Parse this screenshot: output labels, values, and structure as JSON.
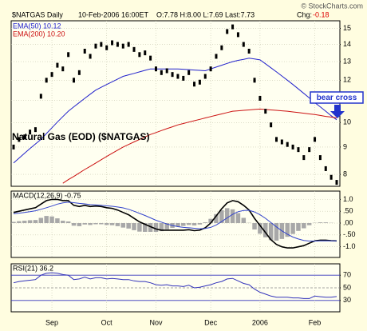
{
  "copyright": "© StockCharts.com",
  "chart_data": [
    {
      "type": "price",
      "title": "Natural Gas (EOD) ($NATGAS)",
      "subtitle": "$NATGAS Daily",
      "date": "10-Feb-2006 16:00ET",
      "ohlc": "O:7.78 H:8.00 L:7.69 Last:7.73",
      "change_label": "Chg:",
      "change": "-0.18",
      "annotation": "bear cross",
      "log_scale": true,
      "grid": true,
      "ylim": [
        7.6,
        15.5
      ],
      "yticks": [
        8,
        9,
        10,
        11,
        12,
        13,
        14,
        15
      ],
      "categories": [
        null,
        null,
        null,
        null,
        null,
        null,
        null,
        "Sep",
        null,
        null,
        null,
        null,
        null,
        null,
        null,
        null,
        null,
        "Oct",
        null,
        null,
        null,
        null,
        null,
        null,
        null,
        null,
        "Nov",
        null,
        null,
        null,
        null,
        null,
        null,
        null,
        null,
        null,
        "Dec",
        null,
        null,
        null,
        null,
        null,
        null,
        null,
        null,
        "2006",
        null,
        null,
        null,
        null,
        null,
        null,
        null,
        null,
        null,
        "Feb",
        null,
        null,
        null,
        null
      ],
      "color": "#000000",
      "values": [
        9.0,
        9.3,
        9.4,
        9.6,
        9.7,
        11.2,
        12.0,
        12.3,
        12.8,
        12.6,
        13.4,
        12.0,
        12.4,
        13.6,
        13.3,
        13.9,
        14.0,
        13.8,
        14.1,
        14.0,
        13.9,
        14.0,
        13.7,
        13.4,
        13.5,
        13.2,
        12.6,
        12.4,
        12.5,
        12.3,
        12.2,
        12.1,
        12.4,
        11.8,
        11.9,
        12.2,
        12.6,
        13.3,
        13.8,
        14.8,
        15.1,
        14.6,
        14.0,
        13.6,
        12.0,
        11.1,
        10.5,
        9.9,
        9.3,
        9.2,
        9.1,
        9.0,
        8.9,
        8.6,
        8.9,
        9.3,
        8.6,
        8.2,
        7.9,
        7.73
      ],
      "series": [
        {
          "name": "EMA(50) 10.12",
          "color": "#2222cc",
          "values": [
            8.4,
            8.58,
            8.76,
            8.94,
            9.12,
            9.3,
            9.54,
            9.78,
            10.02,
            10.26,
            10.5,
            10.7,
            10.9,
            11.1,
            11.3,
            11.5,
            11.64,
            11.78,
            11.92,
            12.06,
            12.2,
            12.28,
            12.36,
            12.44,
            12.52,
            12.6,
            12.6,
            12.6,
            12.6,
            12.6,
            12.6,
            12.58,
            12.56,
            12.54,
            12.52,
            12.5,
            12.6,
            12.7,
            12.8,
            12.9,
            13.0,
            13.07,
            13.13,
            13.2,
            13.15,
            13.1,
            12.88,
            12.66,
            12.44,
            12.22,
            12.0,
            11.78,
            11.56,
            11.34,
            11.12,
            10.9,
            10.7,
            10.5,
            10.3,
            10.12
          ]
        },
        {
          "name": "EMA(200) 10.20",
          "color": "#cc1111",
          "values": [
            null,
            null,
            null,
            null,
            null,
            null,
            null,
            null,
            null,
            7.7,
            7.82,
            7.93,
            8.05,
            8.17,
            8.28,
            8.4,
            8.52,
            8.64,
            8.76,
            8.88,
            9.0,
            9.1,
            9.2,
            9.3,
            9.4,
            9.5,
            9.58,
            9.66,
            9.74,
            9.82,
            9.9,
            9.96,
            10.02,
            10.08,
            10.14,
            10.2,
            10.26,
            10.32,
            10.38,
            10.44,
            10.5,
            10.52,
            10.54,
            10.56,
            10.58,
            10.6,
            10.58,
            10.56,
            10.54,
            10.52,
            10.5,
            10.47,
            10.44,
            10.41,
            10.38,
            10.35,
            10.31,
            10.27,
            10.24,
            10.2
          ]
        }
      ]
    },
    {
      "type": "macd",
      "label": "MACD(12,26,9) -0.75",
      "ylim": [
        -1.45,
        1.35
      ],
      "grid": true,
      "yticks": [
        {
          "value": 1,
          "label": "1.0"
        },
        {
          "value": 0.5,
          "label": ".50"
        },
        {
          "value": 0,
          "label": ".00"
        },
        {
          "value": -0.5,
          "label": "-.50"
        },
        {
          "value": -1,
          "label": "-1.0"
        }
      ],
      "histogram": {
        "color": "#a8a8a8",
        "values": [
          0.05,
          0.08,
          0.1,
          0.12,
          0.13,
          0.22,
          0.3,
          0.28,
          0.2,
          0.1,
          0.07,
          -0.11,
          -0.13,
          -0.06,
          -0.08,
          -0.05,
          -0.05,
          -0.08,
          -0.09,
          -0.13,
          -0.19,
          -0.23,
          -0.3,
          -0.36,
          -0.37,
          -0.37,
          -0.37,
          -0.34,
          -0.26,
          -0.2,
          -0.15,
          -0.12,
          -0.08,
          -0.1,
          -0.06,
          0.03,
          0.18,
          0.38,
          0.54,
          0.63,
          0.58,
          0.42,
          0.22,
          0.01,
          -0.27,
          -0.45,
          -0.6,
          -0.72,
          -0.74,
          -0.67,
          -0.58,
          -0.46,
          -0.33,
          -0.22,
          -0.09,
          0.01,
          0.03,
          0.03,
          0.01,
          0.0
        ]
      },
      "series": [
        {
          "color": "#000000",
          "values": [
            0.45,
            0.5,
            0.55,
            0.6,
            0.65,
            0.8,
            0.95,
            1.0,
            1.0,
            0.95,
            0.95,
            0.75,
            0.7,
            0.75,
            0.7,
            0.72,
            0.7,
            0.65,
            0.62,
            0.55,
            0.45,
            0.35,
            0.2,
            0.05,
            -0.05,
            -0.15,
            -0.25,
            -0.3,
            -0.3,
            -0.3,
            -0.3,
            -0.3,
            -0.28,
            -0.32,
            -0.3,
            -0.2,
            0.0,
            0.3,
            0.6,
            0.85,
            0.95,
            0.9,
            0.75,
            0.55,
            0.2,
            -0.1,
            -0.4,
            -0.7,
            -0.9,
            -1.0,
            -1.05,
            -1.05,
            -1.0,
            -0.95,
            -0.85,
            -0.75,
            -0.72,
            -0.72,
            -0.74,
            -0.75
          ]
        },
        {
          "color": "#3344cc",
          "values": [
            0.4,
            0.42,
            0.45,
            0.48,
            0.52,
            0.58,
            0.65,
            0.72,
            0.8,
            0.85,
            0.88,
            0.86,
            0.83,
            0.81,
            0.78,
            0.77,
            0.75,
            0.73,
            0.71,
            0.68,
            0.64,
            0.58,
            0.5,
            0.41,
            0.32,
            0.22,
            0.12,
            0.04,
            -0.04,
            -0.1,
            -0.15,
            -0.18,
            -0.2,
            -0.22,
            -0.24,
            -0.23,
            -0.18,
            -0.08,
            0.06,
            0.22,
            0.37,
            0.48,
            0.53,
            0.54,
            0.47,
            0.35,
            0.2,
            0.02,
            -0.16,
            -0.33,
            -0.47,
            -0.59,
            -0.67,
            -0.73,
            -0.76,
            -0.76,
            -0.75,
            -0.75,
            -0.75,
            -0.75
          ]
        }
      ]
    },
    {
      "type": "rsi",
      "label": "RSI(21) 36.2",
      "ylim": [
        12,
        88
      ],
      "yticks": [
        70,
        50,
        30
      ],
      "reference_color": "#3333bb",
      "color": "#3333bb",
      "values": [
        58,
        60,
        61,
        62,
        63,
        70,
        73,
        74,
        73,
        71,
        70,
        63,
        64,
        67,
        64,
        66,
        66,
        64,
        65,
        64,
        63,
        63,
        61,
        60,
        60,
        58,
        55,
        54,
        55,
        53,
        53,
        52,
        54,
        50,
        51,
        53,
        55,
        58,
        60,
        64,
        65,
        61,
        57,
        55,
        48,
        43,
        40,
        37,
        35,
        35,
        35,
        34,
        34,
        33,
        33,
        37,
        36,
        35,
        35,
        36.2
      ]
    }
  ]
}
